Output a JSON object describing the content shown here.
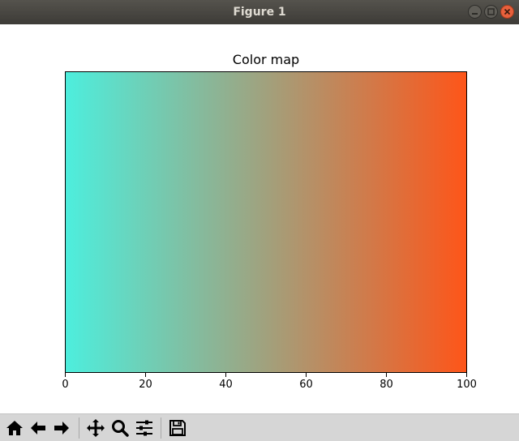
{
  "window": {
    "title": "Figure 1"
  },
  "toolbar": {
    "buttons": [
      {
        "name": "home",
        "icon": "home-icon"
      },
      {
        "name": "back",
        "icon": "arrow-left-icon"
      },
      {
        "name": "forward",
        "icon": "arrow-right-icon"
      },
      {
        "name": "pan",
        "icon": "move-icon"
      },
      {
        "name": "zoom",
        "icon": "magnifier-icon"
      },
      {
        "name": "configure-subplots",
        "icon": "sliders-icon"
      },
      {
        "name": "save",
        "icon": "floppy-disk-icon"
      }
    ]
  },
  "chart_data": {
    "type": "heatmap",
    "title": "Color map",
    "xlabel": "",
    "ylabel": "",
    "xlim": [
      0,
      100
    ],
    "x_ticks": [
      "0",
      "20",
      "40",
      "60",
      "80",
      "100"
    ],
    "y_ticks": [],
    "colormap": {
      "start_color": "#4deedd",
      "mid_color": "#a1a17d",
      "end_color": "#fe5519"
    },
    "grid": false
  }
}
